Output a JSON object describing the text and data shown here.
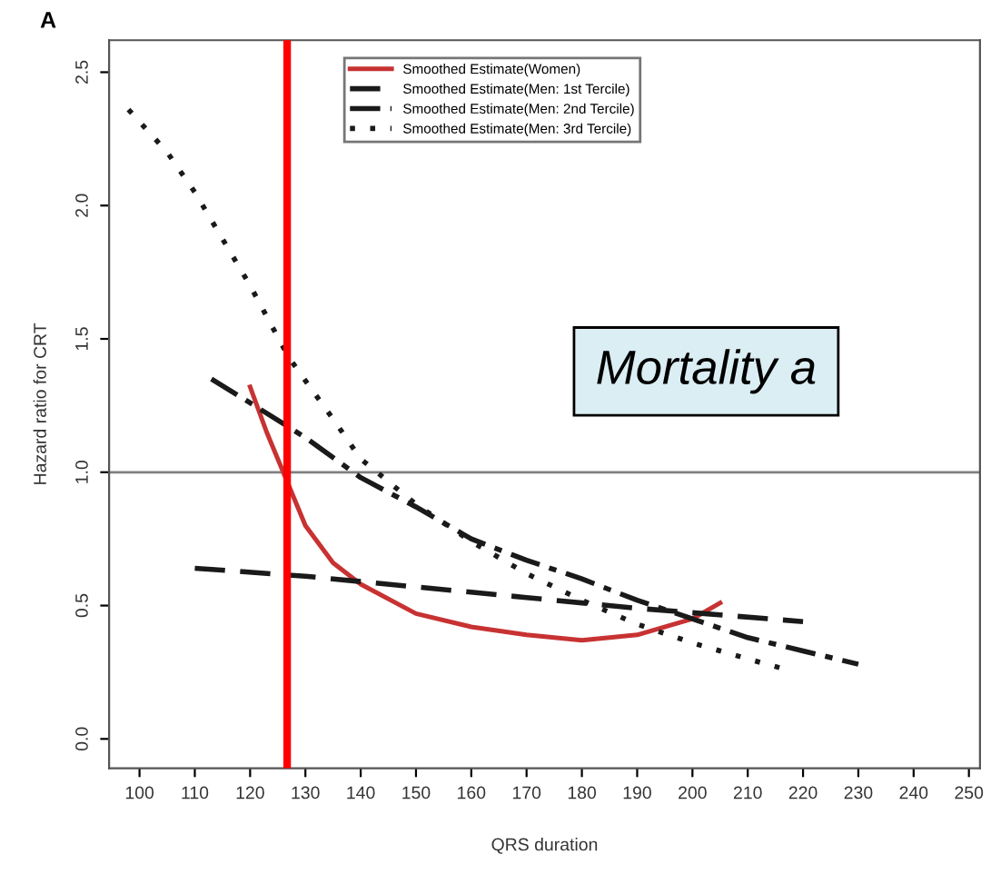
{
  "chart_data": {
    "type": "line",
    "title": "A",
    "xlabel": "QRS duration",
    "ylabel": "Hazard ratio for CRT",
    "xlim": [
      94.5,
      252
    ],
    "ylim": [
      -0.11,
      2.62
    ],
    "xticks": [
      100,
      110,
      120,
      130,
      140,
      150,
      160,
      170,
      180,
      190,
      200,
      210,
      220,
      230,
      240,
      250
    ],
    "yticks": [
      {
        "value": 0,
        "label": "0.0"
      },
      {
        "value": 0.5,
        "label": "0.5"
      },
      {
        "value": 1,
        "label": "1.0"
      },
      {
        "value": 1.5,
        "label": "1.5"
      },
      {
        "value": 2,
        "label": "2.0"
      },
      {
        "value": 2.5,
        "label": "2.5"
      }
    ],
    "grid": false,
    "legend": "top",
    "marker": "none",
    "ref_lines": [
      {
        "axis": "y",
        "value": 1,
        "color": "#808080",
        "line_style": "solid"
      },
      {
        "axis": "x",
        "value": 126.7,
        "color": "#ff0000",
        "line_style": "solid"
      }
    ],
    "annotations": [
      "Mortality a"
    ],
    "series": [
      {
        "name": "Smoothed Estimate(Women)",
        "color": "#c83232",
        "line_style": "solid",
        "x": [
          120,
          123,
          126,
          130,
          135,
          140,
          150,
          160,
          170,
          180,
          190,
          200,
          205
        ],
        "values": [
          1.32,
          1.15,
          1.0,
          0.8,
          0.66,
          0.58,
          0.47,
          0.42,
          0.39,
          0.37,
          0.39,
          0.45,
          0.51
        ]
      },
      {
        "name": "Smoothed Estimate(Men: 1st Tercile)",
        "color": "#1a1a1a",
        "line_style": "dashed",
        "x": [
          110,
          130,
          150,
          170,
          190,
          220
        ],
        "values": [
          0.64,
          0.61,
          0.57,
          0.53,
          0.49,
          0.44
        ]
      },
      {
        "name": "Smoothed Estimate(Men: 2nd Tercile)",
        "color": "#1a1a1a",
        "line_style": "dashdot",
        "x": [
          113,
          120,
          130,
          140,
          150,
          160,
          170,
          180,
          190,
          200,
          210,
          220,
          230
        ],
        "values": [
          1.35,
          1.26,
          1.13,
          0.98,
          0.87,
          0.75,
          0.67,
          0.6,
          0.52,
          0.45,
          0.38,
          0.33,
          0.28
        ]
      },
      {
        "name": "Smoothed Estimate(Men: 3rd Tercile)",
        "color": "#1a1a1a",
        "line_style": "dotted",
        "x": [
          98,
          105,
          110,
          120,
          127,
          135,
          140,
          150,
          160,
          170,
          180,
          190,
          200,
          210,
          217
        ],
        "values": [
          2.36,
          2.2,
          2.05,
          1.7,
          1.43,
          1.2,
          1.05,
          0.88,
          0.74,
          0.62,
          0.52,
          0.43,
          0.36,
          0.3,
          0.26
        ]
      }
    ]
  }
}
